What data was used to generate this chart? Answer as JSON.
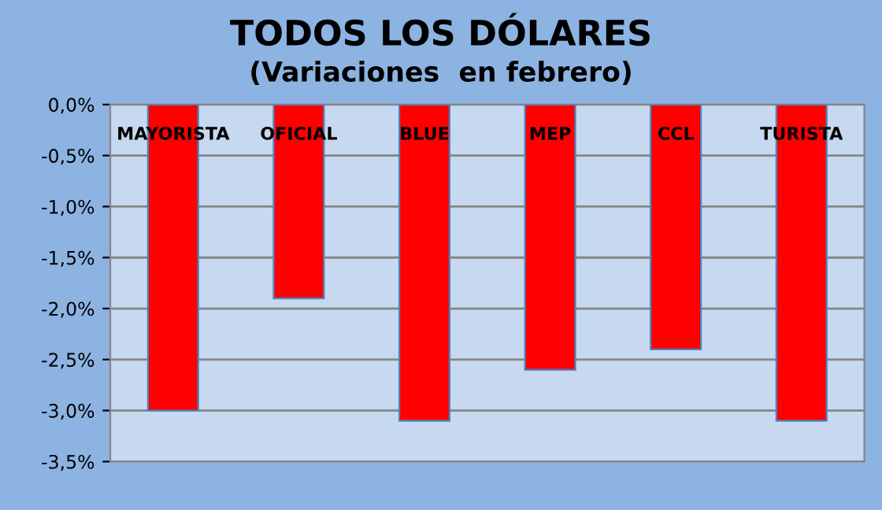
{
  "chart_data": {
    "type": "bar",
    "title": "TODOS LOS DÓLARES",
    "subtitle": "(Variaciones  en febrero)",
    "categories": [
      "MAYORISTA",
      "OFICIAL",
      "BLUE",
      "MEP",
      "CCL",
      "TURISTA"
    ],
    "values": [
      -3.0,
      -1.9,
      -3.1,
      -2.6,
      -2.4,
      -3.1
    ],
    "color": "#ff0000",
    "ylim": [
      -3.5,
      0
    ],
    "yticks": [
      {
        "value": 0,
        "label": "0,0%"
      },
      {
        "value": -0.5,
        "label": "-0,5%"
      },
      {
        "value": -1.0,
        "label": "-1,0%"
      },
      {
        "value": -1.5,
        "label": "-1,5%"
      },
      {
        "value": -2.0,
        "label": "-2,0%"
      },
      {
        "value": -2.5,
        "label": "-2,5%"
      },
      {
        "value": -3.0,
        "label": "-3,0%"
      },
      {
        "value": -3.5,
        "label": "-3,5%"
      }
    ],
    "grid": "y"
  }
}
